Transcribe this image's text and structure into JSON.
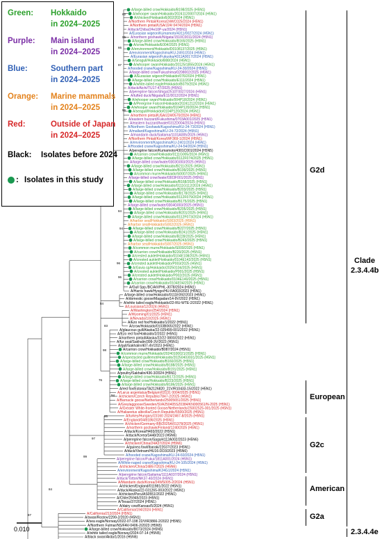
{
  "legend": {
    "items": [
      {
        "key": "Green:",
        "desc1": "Hokkaido",
        "desc2": "in 2024–2025",
        "color": "#2ca02c"
      },
      {
        "key": "Purple:",
        "desc1": "Main island",
        "desc2": "in 2024–2025",
        "color": "#7b2fa6"
      },
      {
        "key": "Blue:",
        "desc1": "Southern part",
        "desc2": "in 2024–2025",
        "color": "#2f5fb5"
      },
      {
        "key": "Orange:",
        "desc1": "Marine mammals",
        "desc2": "in 2024–2025",
        "color": "#e3821c"
      },
      {
        "key": "Red:",
        "desc1": "Outside of Japan",
        "desc2": "in 2024–2025",
        "color": "#d62728"
      },
      {
        "key": "Black:",
        "desc1": "Isolates before 2024",
        "desc2": "",
        "color": "#000000"
      },
      {
        "key": "",
        "desc1": "Isolates in this study",
        "desc2": "",
        "color": "#1a9850",
        "dot": true
      }
    ]
  },
  "clades": {
    "g2d": "G2d",
    "clade_line1": "Clade",
    "clade_line2": "2.3.4.4b",
    "european": "European",
    "g2c": "G2c",
    "american": "American",
    "g2a": "G2a",
    "e": "2.3.4.4e"
  },
  "scale": {
    "label": "0.010"
  },
  "tips": [
    {
      "t": "A/large-billed crow/Hokkaido/B198/2025 (H5N1)",
      "c": "g",
      "d": 1
    },
    {
      "t": "A/whooper swan/Hokkaido/20241120007/2024 (H5N1)",
      "c": "g",
      "d": 1
    },
    {
      "t": "A/chicken/Hokkaido/E002/2024 (H5N1)",
      "c": "g",
      "d": 1
    },
    {
      "t": "A/Northern Pintail/Korea/24WC025/2024 (H5N1)",
      "c": "r",
      "d": 0
    },
    {
      "t": "A/Northern pintail/USA/J24/ 0474/2024 (H5N1)",
      "c": "r",
      "d": 0
    },
    {
      "t": "A/duck/Chiba/24e10P-ya/2024 (H5N1)",
      "c": "p",
      "d": 0
    },
    {
      "t": "A/Eurasian wigeon/Kumamoto/4311/0027/2024 (H5N1)",
      "c": "b",
      "d": 0
    },
    {
      "t": "A/northern goshawk/Niigata/1510C0011/2024 (H5N1)",
      "c": "p",
      "d": 0
    },
    {
      "t": "A/large-billed crow/Hokkaido/B165/2025 (H5N1)",
      "c": "g",
      "d": 1
    },
    {
      "t": "A/crow/Hokkaido/E004/2025 (H5N1)",
      "c": "g",
      "d": 1
    },
    {
      "t": "A/environment/Hokkaido/D0108137/2025 (H5N1)",
      "c": "g",
      "d": 1
    },
    {
      "t": "A/environment/Kagoshima/KU-2491/2024 (H5N1)",
      "c": "b",
      "d": 0
    },
    {
      "t": "A/Eurasian wigeon/Fukuoka/4311A0017/2024 (H5N1)",
      "c": "b",
      "d": 0
    },
    {
      "t": "A/Seagull/Hokkaido/B88/2024 (H5N1)",
      "c": "g",
      "d": 1
    },
    {
      "t": "A/whooper swan/Hokkaido/20125/1855/2024 (H5N1)",
      "c": "g",
      "d": 1
    },
    {
      "t": "A/hooded crane/Kagoshima/KU-24-30/2024 (H5N1)",
      "c": "b",
      "d": 0
    },
    {
      "t": "A/large-billed crow/Fukushima/0208002/2025 (H5N1)",
      "c": "p",
      "d": 0
    },
    {
      "t": "A/Eurasian wigeon/Hokkaido/076/2024 (H5N1)",
      "c": "g",
      "d": 1
    },
    {
      "t": "A/large-billed crow/Hokkaido/E111/2024 (H5N1)",
      "c": "g",
      "d": 1
    },
    {
      "t": "A/white-tailed eagle/Hokkaido/B079/2024 (H5N1)",
      "c": "g",
      "d": 1
    },
    {
      "t": "A/duck/Aichi/TU17-47/2025 (H5N1)",
      "c": "p",
      "d": 0
    },
    {
      "t": "A/peregrine falcon/Shiga/2510T0027/2024 (H5N1)",
      "c": "p",
      "d": 0
    },
    {
      "t": "A/tufted duck/Niigata/E11/0012/2024 (H5N1)",
      "c": "p",
      "d": 0
    },
    {
      "t": "A/whooper swan/Hokkaido/004P18/2024 (H5N1)",
      "c": "g",
      "d": 1
    },
    {
      "t": "A/Peregrine Falcon/Hokkaido/20241212/2024 (H5N1)",
      "c": "g",
      "d": 1
    },
    {
      "t": "A/whooper swan/Hokkaido/0104P120/2024 (H5N1)",
      "c": "g",
      "d": 1
    },
    {
      "t": "A/seagull/Hokkaido/0104P120/2024 (H5N1)",
      "c": "g",
      "d": 1
    },
    {
      "t": "A/northern pintail/USA/J24/0570/2024 (H5N1)",
      "c": "r",
      "d": 0
    },
    {
      "t": "A/eastern buzzard/Fukushima/0703A001/2025 (H5N1)",
      "c": "p",
      "d": 0
    },
    {
      "t": "A/eastern buzzard/Iwate/0312D004/2024 (H5N1)",
      "c": "p",
      "d": 0
    },
    {
      "t": "A/Northern Goshawk/Kagoshima/KU-24-73/2024 (H5N1)",
      "c": "b",
      "d": 0
    },
    {
      "t": "A/mallard/Kagoshima/KU-24-72/2024 (H5N1)",
      "c": "b",
      "d": 0
    },
    {
      "t": "A/mandarin duck/Saitama/1101A005/2025 (H5N1)",
      "c": "p",
      "d": 0
    },
    {
      "t": "A/Northern Pintail/Korea/WF369-1/2024 (H5N1)",
      "c": "r",
      "d": 0
    },
    {
      "t": "A/environment/Kagoshima/KU-2401/2024 (H5N1)",
      "c": "b",
      "d": 0
    },
    {
      "t": "A/Hooded crane/Kagoshima/KU-24-54/2024 (H5N1)",
      "c": "b",
      "d": 0
    },
    {
      "t": "A/peregrine falcon/Kumamoto/4301C001/2024 (H5N5)",
      "c": "k",
      "d": 0
    },
    {
      "t": "A/carrion crow/Hokkaido/0111G005/2024 (H5N1)",
      "c": "g",
      "d": 1
    },
    {
      "t": "A/large-billed crow/Hokkaido/0112F074/2025 (H5N1)",
      "c": "g",
      "d": 1
    },
    {
      "t": "A/large-billed crow/Iwate/0303G003/2025 (H5N1)",
      "c": "p",
      "d": 0
    },
    {
      "t": "A/large-billed crow/Hokkaido/B211/2025 (H5N1)",
      "c": "g",
      "d": 1
    },
    {
      "t": "A/large-billed crow/Hokkaido/B199/2025 (H5N1)",
      "c": "g",
      "d": 1
    },
    {
      "t": "A/common murre/Hokkaido/S0007/2025 (H5N1)",
      "c": "g",
      "d": 1
    },
    {
      "t": "A/large-billed crow/Iwate/0303F001/2025 (H5N1)",
      "c": "p",
      "d": 0
    },
    {
      "t": "A/large-billed crow/Hokkaido/B168/2025 (H5N1)",
      "c": "g",
      "d": 1
    },
    {
      "t": "A/large-billed crow/Hokkaido/0111G112/2024 (H5N1)",
      "c": "g",
      "d": 1
    },
    {
      "t": "A/large-billed crow/Hokkaido/B203/2025 (H5N1)",
      "c": "g",
      "d": 1
    },
    {
      "t": "A/large-billed crow/Hokkaido/B178/2025 (H5N1)",
      "c": "g",
      "d": 1
    },
    {
      "t": "A/large-billed crow/Hokkaido/0112F079/2024 (H5N1)",
      "c": "g",
      "d": 1
    },
    {
      "t": "A/large-billed crow/Hokkaido/B175/2025 (H5N1)",
      "c": "g",
      "d": 1
    },
    {
      "t": "A/large-billed crow/Iwate/0304G003/2025 (H5N1)",
      "c": "p",
      "d": 0
    },
    {
      "t": "A/large-billed crow/Hokkaido/B205/2025 (H5N1)",
      "c": "g",
      "d": 1
    },
    {
      "t": "A/large-billed crow/Hokkaido/B201/2025 (H5N1)",
      "c": "g",
      "d": 1
    },
    {
      "t": "A/large-billed crow/Hokkaido/0112F073/2024 (H5N1)",
      "c": "g",
      "d": 1
    },
    {
      "t": "A/harbor seal/Hokkaido/S003/2025 (H5N1)",
      "c": "o",
      "d": 0
    },
    {
      "t": "A/harbor seal/Hokkaido/S002/2025 (H5N1)",
      "c": "o",
      "d": 0
    },
    {
      "t": "A/large-billed crow/Hokkaido/B227/2025 (H5N1)",
      "c": "g",
      "d": 1
    },
    {
      "t": "A/large-billed crow/Hokkaido/B241/2025 (H5N1)",
      "c": "g",
      "d": 1
    },
    {
      "t": "A/large-billed crow/Hokkaido/B228/2025 (H5N1)",
      "c": "g",
      "d": 1
    },
    {
      "t": "A/large-billed crow/Hokkaido/B243/2025 (H5N1)",
      "c": "g",
      "d": 1
    },
    {
      "t": "A/harbor seal/Hokkaido/S007/2025 (H5N1)",
      "c": "o",
      "d": 0
    },
    {
      "t": "A/common murre/Hokkaido/S009/2025 (H5N1)",
      "c": "g",
      "d": 1
    },
    {
      "t": "A/carrion crow/Hokkaido/B220/2025 (H5N1)",
      "c": "g",
      "d": 1
    },
    {
      "t": "A/crested auklet/Hokkaido/0104E108/2025 (H5N1)",
      "c": "g",
      "d": 1
    },
    {
      "t": "A/crested auklet/Hokkaido/0104E142/2025 (H5N1)",
      "c": "g",
      "d": 1
    },
    {
      "t": "A/crested auklet/Hokkaido/P003/2025 (H5N1)",
      "c": "g",
      "d": 1
    },
    {
      "t": "A/Gavia sp/Hokkaido/20250104/2025 (H5N1)",
      "c": "g",
      "d": 1
    },
    {
      "t": "A/crested auklet/Hokkaido/P001/2025 (H5N1)",
      "c": "g",
      "d": 1
    },
    {
      "t": "A/crested auklet/Hokkaido/P002/2025 (H5N1)",
      "c": "g",
      "d": 1
    },
    {
      "t": "A/carrion crow/Hokkaido/0104E140/2025 (H5N1)",
      "c": "g",
      "d": 1
    },
    {
      "t": "A/carrion crow/Hokkaido/0104E04/2025 (H5N1)",
      "c": "g",
      "d": 1
    },
    {
      "t": "A/Gull Spp./BC/AIVPHL-3078/2024 (H5N1)",
      "c": "k",
      "d": 0
    },
    {
      "t": "A/Harris hawk/Hyogo/HU-FA003/2023 (H5N1)",
      "c": "k",
      "d": 0
    },
    {
      "t": "A/large-billed crow/Hokkaido/0111E092/2023 (H5N1)",
      "c": "k",
      "d": 0
    },
    {
      "t": "A/domestic goose/Magadan/14-9V/2022 (H5N1)",
      "c": "k",
      "d": 0
    },
    {
      "t": "A/white tailed eagle/Hokkaido/22-RU-WTE-2/2022 (H5N1)",
      "c": "k",
      "d": 0
    },
    {
      "t": "A/Louisiana/12/2024 (H5N1)",
      "c": "r",
      "d": 0
    },
    {
      "t": "A/Washington/254/2024 (H5N1)",
      "c": "r",
      "d": 0
    },
    {
      "t": "A/Wyoming/01/2025 (H5N1)",
      "c": "r",
      "d": 0
    },
    {
      "t": "A/Nevada/10/2025 (H5N1)",
      "c": "r",
      "d": 0
    },
    {
      "t": "A/Ezo red fox/Hokkaido/1/2022 (H5N1)",
      "c": "k",
      "d": 0
    },
    {
      "t": "A/crow/Hokkaido/0103B065/2022 (H5N1)",
      "c": "k",
      "d": 0
    },
    {
      "t": "A/glaucous gull/Alaska/22-025499-001/2022 (H5N1)",
      "c": "k",
      "d": 0
    },
    {
      "t": "A/Ezo red fox/Hokkaido/2/2022 (H5N1)",
      "c": "k",
      "d": 0
    },
    {
      "t": "A/northern pintail/Alaska/22/22 0800/2022 (H5N1)",
      "c": "k",
      "d": 0
    },
    {
      "t": "A/fur seal/Sakhalin/399-3V/2023 (H5N1)",
      "c": "k",
      "d": 0
    },
    {
      "t": "A/gull/Sakhalin/407-4V/2023 (H5N1)",
      "c": "k",
      "d": 0
    },
    {
      "t": "A/carrion crow/Hokkaido/B087/2024 (H5N1)",
      "c": "k",
      "d": 1
    },
    {
      "t": "A/common murre/Hokkaido/20240100021/2025 (H5N1)",
      "c": "g",
      "d": 1
    },
    {
      "t": "A/spectacled guillemot/Hokkaido/20250403031/2025 (H5N1)",
      "c": "g",
      "d": 1
    },
    {
      "t": "A/large-billed crow/Hokkaido/B160/2025 (H5N1)",
      "c": "g",
      "d": 1
    },
    {
      "t": "A/large-billed crow/Hokkaido/B188/2025 (H5N1)",
      "c": "g",
      "d": 1
    },
    {
      "t": "A/large-billed crow/Hokkaido/B191/2025 (H5N1)",
      "c": "g",
      "d": 1
    },
    {
      "t": "A/poultry/Sakhalin/436-3/2024 (H5N1)",
      "c": "k",
      "d": 0
    },
    {
      "t": "A/large-billed crow/Hokkaido/B172/2025 (H5N1)",
      "c": "g",
      "d": 1
    },
    {
      "t": "A/large-billed crow/Hokkaido/B223/2025 (H5N1)",
      "c": "g",
      "d": 1
    },
    {
      "t": "A/large-billed crow/Hokkaido/B186/2025 (H5N1)",
      "c": "g",
      "d": 1
    },
    {
      "t": "A/red fox/Estonia/TA2126820_21V/R10433-15/2022 (H5N1)",
      "c": "k",
      "d": 0
    },
    {
      "t": "A/Larus argentatus/Belgium/03131 0004/2025 (H5N1)",
      "c": "r",
      "d": 0
    },
    {
      "t": "A/chicken/Czech Republic/7847-2/2025 (H5N1)",
      "c": "r",
      "d": 0
    },
    {
      "t": "A/Barnacle goose/Netherlands/25005651/2025 (H5N1)",
      "c": "r",
      "d": 0
    },
    {
      "t": "A/Greylaggoose/Sweden/SVA250405SZ0384/KN000561/N-2025 (H5N1)",
      "c": "r",
      "d": 0
    },
    {
      "t": "A/Greater White-fronted Goose/Netherlands/25002525-001/2025 (H5N1)",
      "c": "r",
      "d": 0
    },
    {
      "t": "A/Haliaeetus albicilla/Czech Republic/5500/2025 (H5N1)",
      "c": "r",
      "d": 0
    },
    {
      "t": "A/turkey/Hungary/23160 2024/2467-8/2025 (H5N1)",
      "c": "r",
      "d": 0
    },
    {
      "t": "A/England/04/8186/2025 (H5N1)",
      "c": "r",
      "d": 0
    },
    {
      "t": "A/chicken/Germany-BB/2025A/01378/2025 (H5N1)",
      "c": "r",
      "d": 0
    },
    {
      "t": "A/northern goshawk/Finland/1240/2025 (H5N1)",
      "c": "r",
      "d": 0
    },
    {
      "t": "A/duck/Korea/H493/2022 (H5N1)",
      "c": "k",
      "d": 0
    },
    {
      "t": "A/duck/Korea/S448/2023 (H5N6)",
      "c": "k",
      "d": 0
    },
    {
      "t": "A/peregrine falcon/Saga/4112A002/2023 (H5N6)",
      "c": "k",
      "d": 0
    },
    {
      "t": "A/chicken/China/24A37/2024 (H5N6)",
      "c": "r",
      "d": 0
    },
    {
      "t": "A/guinea fowl/Ibaraki/22037/2023 (H5N1)",
      "c": "k",
      "d": 0
    },
    {
      "t": "A/duck/Vietnam/HU16-DD3/2023 (H5N6)",
      "c": "k",
      "d": 0
    },
    {
      "t": "A/hooded crane/Kagoshima/KU-24-60/2024 (H5N1)",
      "c": "b",
      "d": 0
    },
    {
      "t": "A/peregrine falcon/Fukui/1811A001/2024 (H5N1)",
      "c": "p",
      "d": 0
    },
    {
      "t": "A/White-naped crane/Kagoshima/KU-24-105/2024 (H5N1)",
      "c": "b",
      "d": 0
    },
    {
      "t": "A/chicken/China/24B57/2025 (H5N6)",
      "c": "r",
      "d": 0
    },
    {
      "t": "A/environment/Kagoshima/K24G1/2024 (H5N1)",
      "c": "b",
      "d": 0
    },
    {
      "t": "A/peregrine falcon/Saitama/1111A037/2024 (H5N1)",
      "c": "p",
      "d": 0
    },
    {
      "t": "A/duck/Tottori/NK37-40/2024 (H5N1)",
      "c": "p",
      "d": 0
    },
    {
      "t": "A/Mandarin duck/Korea/24WS005-2/2024 (H5N1)",
      "c": "r",
      "d": 0
    },
    {
      "t": "A/chicken/England/011981/2022 (H5N1)",
      "c": "k",
      "d": 0
    },
    {
      "t": "A/duck/Alaska/22-031265-003/2022 (H5N1)",
      "c": "k",
      "d": 0
    },
    {
      "t": "A/chicken/Peru/AS0551/2022 (H5N1)",
      "c": "k",
      "d": 0
    },
    {
      "t": "A/Chile/25945/2023 (H5N1)",
      "c": "k",
      "d": 0
    },
    {
      "t": "A/Texas/37/2024 (H5N1)",
      "c": "k",
      "d": 0
    },
    {
      "t": "A/dairy cow/Kansas/5/2024 (H5N1)",
      "c": "k",
      "d": 0
    },
    {
      "t": "A/California/194/2024 (H5N1)",
      "c": "r",
      "d": 0
    },
    {
      "t": "A/California/213/2024 (H5N1)",
      "c": "r",
      "d": 0
    },
    {
      "t": "A/swan/Rostov/2299-2/2020 (H5N1)",
      "c": "k",
      "d": 0
    },
    {
      "t": "A/sea eagle/Norway/2022-07-198 22/VIR3866-2/2022 (H5N5)",
      "c": "k",
      "d": 0
    },
    {
      "t": "A/Northern Fulmar/NS/FAV-0406-2/2023 (H5N5)",
      "c": "k",
      "d": 0
    },
    {
      "t": "A/large-billed crow/Hokkaido/B073/2024 (H5N5)",
      "c": "k",
      "d": 1
    },
    {
      "t": "A/white tailed eagle/Norway/2024-07-14 (H5N5)",
      "c": "k",
      "d": 0
    },
    {
      "t": "A/black swan/Akita/1/2016 (H5N6)",
      "c": "k",
      "d": 0
    }
  ]
}
